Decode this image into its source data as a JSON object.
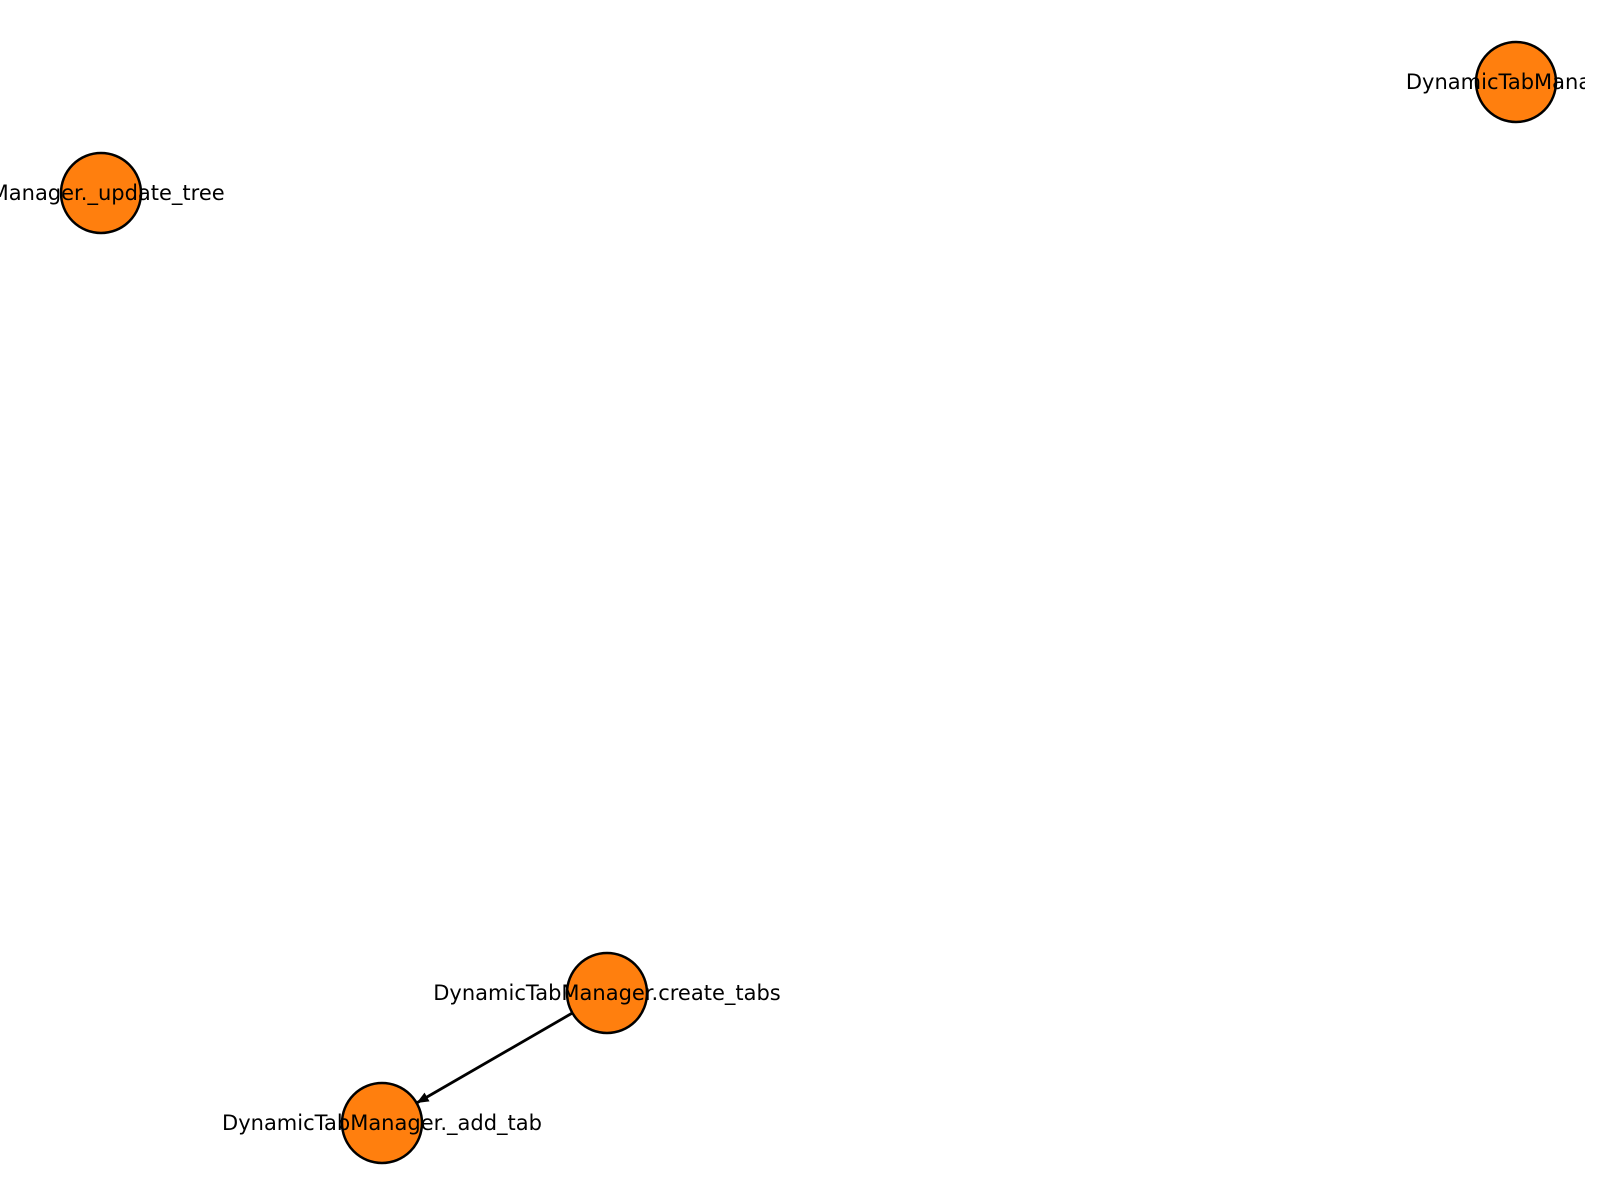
{
  "colors": {
    "node_fill": "#ff7f0e",
    "node_stroke": "#000000",
    "edge": "#000000",
    "label": "#000000",
    "background": "#ffffff"
  },
  "nodes": [
    {
      "id": "n_update_tree",
      "label": "bManager._update_tree"
    },
    {
      "id": "n_top_right",
      "label": "DynamicTabManager"
    },
    {
      "id": "n_create_tabs",
      "label": "DynamicTabManager.create_tabs"
    },
    {
      "id": "n_add_tab",
      "label": "DynamicTabManager._add_tab"
    }
  ],
  "edges": [
    {
      "from": "n_create_tabs",
      "to": "n_add_tab",
      "directed": true
    }
  ]
}
